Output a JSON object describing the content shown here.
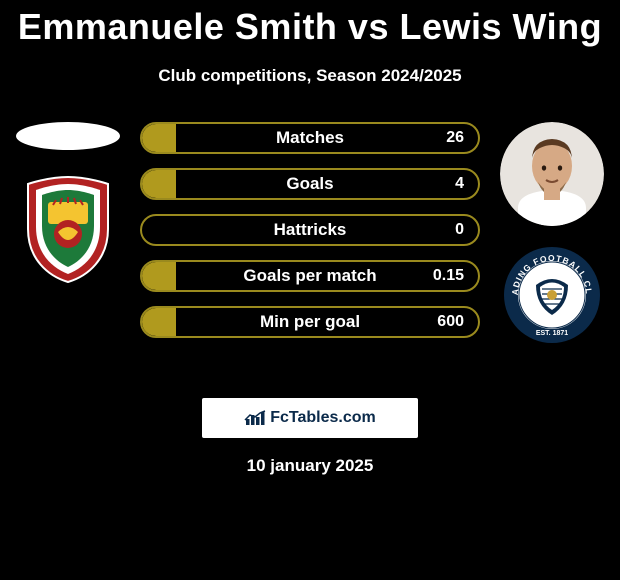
{
  "title": "Emmanuele Smith vs Lewis Wing",
  "subtitle": "Club competitions, Season 2024/2025",
  "date": "10 january 2025",
  "footer_brand": "FcTables.com",
  "bar_border_color": "#9a8a1e",
  "bar_fill_color": "#b09a1e",
  "bars": [
    {
      "label": "Matches",
      "value_right": "26",
      "fill_pct": 10
    },
    {
      "label": "Goals",
      "value_right": "4",
      "fill_pct": 10
    },
    {
      "label": "Hattricks",
      "value_right": "0",
      "fill_pct": 0
    },
    {
      "label": "Goals per match",
      "value_right": "0.15",
      "fill_pct": 10
    },
    {
      "label": "Min per goal",
      "value_right": "600",
      "fill_pct": 10
    }
  ],
  "left_player": {
    "has_photo": false,
    "club_colors": {
      "outer": "#b22222",
      "mid": "#ffffff",
      "inner": "#1d7a3a",
      "accent": "#f4c430"
    }
  },
  "right_player": {
    "has_photo": true,
    "skin": "#d6a985",
    "hair": "#5a3a22",
    "shirt": "#ffffff",
    "club_colors": {
      "ring": "#0b2a4a",
      "inner": "#ffffff",
      "text": "#0b2a4a"
    }
  }
}
